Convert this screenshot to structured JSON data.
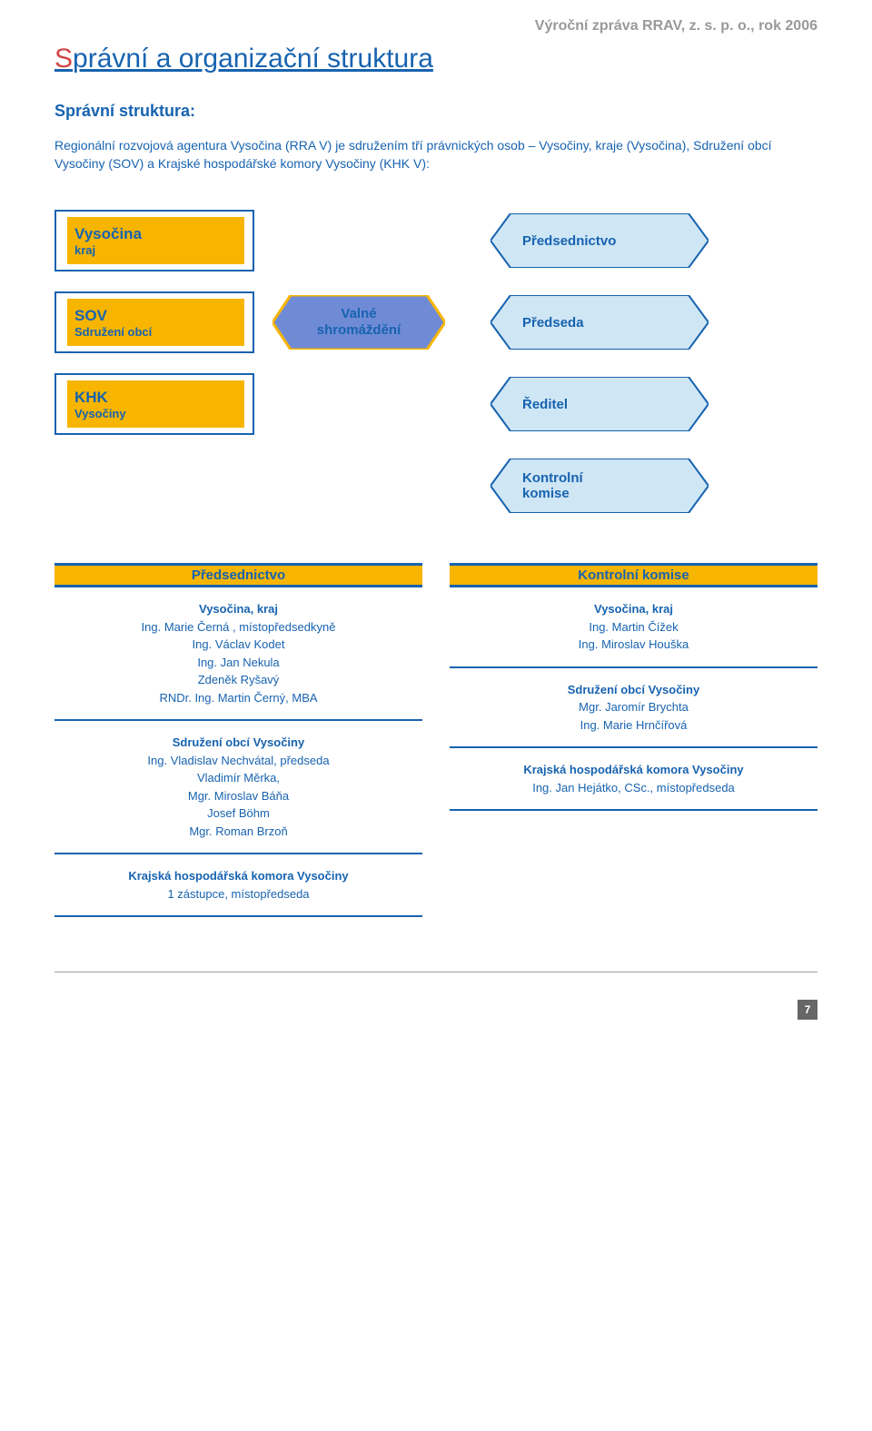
{
  "header": "Výroční zpráva RRAV, z. s. p. o., rok 2006",
  "title": {
    "first": "S",
    "rest": "právní a organizační struktura"
  },
  "subtitle": "Správní struktura:",
  "intro": "Regionální rozvojová agentura Vysočina (RRA V) je sdružením tří právnických osob – Vysočiny, kraje (Vysočina), Sdružení obcí Vysočiny (SOV) a Krajské hospodářské komory Vysočiny (KHK V):",
  "diagram": {
    "left_boxes": [
      {
        "line1": "Vysočina",
        "line2": "kraj"
      },
      {
        "line1": "SOV",
        "line2": "Sdružení obcí"
      },
      {
        "line1": "KHK",
        "line2": "Vysočiny"
      }
    ],
    "center_arrow": "Valné\nshromáždění",
    "right_arrows": [
      "Předsednictvo",
      "Předseda",
      "Ředitel",
      "Kontrolní\nkomise"
    ],
    "colors": {
      "outline": "#1763b0",
      "left_bg": "#f7b500",
      "center_fill": "#6f8bd6",
      "center_outline": "#f7b500",
      "right_fill": "#cfe6f5",
      "right_outline": "#1763b0"
    }
  },
  "table": {
    "left_header": "Předsednictvo",
    "right_header": "Kontrolní komise",
    "rows": [
      {
        "left": {
          "bold": "Vysočina, kraj",
          "lines": [
            "Ing. Marie Černá , místopředsedkyně",
            "Ing. Václav Kodet",
            "Ing. Jan Nekula",
            "Zdeněk Ryšavý",
            "RNDr. Ing. Martin Černý, MBA"
          ]
        },
        "right": {
          "bold": "Vysočina, kraj",
          "lines": [
            "Ing. Martin Čížek",
            "Ing. Miroslav Houška"
          ]
        }
      },
      {
        "left": {
          "bold": "Sdružení obcí Vysočiny",
          "lines": [
            "Ing. Vladislav Nechvátal, předseda",
            "Vladimír Měrka,",
            "Mgr. Miroslav Báňa",
            "Josef Böhm",
            "Mgr. Roman Brzoň"
          ]
        },
        "right": {
          "bold": "Sdružení obcí Vysočiny",
          "lines": [
            "Mgr. Jaromír Brychta",
            "Ing. Marie Hrnčířová"
          ]
        }
      },
      {
        "left": {
          "bold": "Krajská hospodářská komora Vysočiny",
          "lines": [
            "1 zástupce, místopředseda"
          ]
        },
        "right": {
          "bold": "Krajská hospodářská komora Vysočiny",
          "lines": [
            "Ing. Jan Hejátko, CSc., místopředseda"
          ]
        }
      }
    ]
  },
  "page_number": "7"
}
